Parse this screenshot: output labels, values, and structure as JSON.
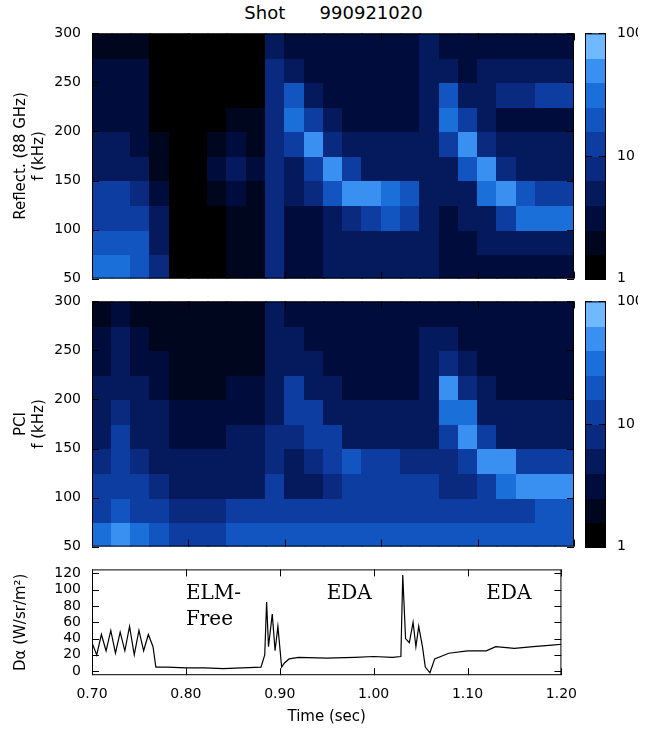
{
  "chart_data": [
    {
      "type": "heatmap",
      "title": "Shot      990921020",
      "y_label": [
        "Reflect. (88 GHz)",
        "f (kHz)"
      ],
      "xlim": [
        0.7,
        1.2
      ],
      "xticks": [
        0.7,
        0.8,
        0.9,
        1.0,
        1.1,
        1.2
      ],
      "ylim": [
        50,
        300
      ],
      "yticks": [
        50,
        100,
        150,
        200,
        250,
        300
      ],
      "tick_labels": "y",
      "x_edges": [
        0.7,
        0.72,
        0.74,
        0.76,
        0.78,
        0.8,
        0.82,
        0.84,
        0.86,
        0.88,
        0.9,
        0.92,
        0.94,
        0.96,
        0.98,
        1.0,
        1.02,
        1.04,
        1.06,
        1.08,
        1.1,
        1.12,
        1.14,
        1.16,
        1.18,
        1.2
      ],
      "y_edges": [
        50,
        75,
        100,
        125,
        150,
        175,
        200,
        225,
        250,
        275,
        300
      ],
      "z": [
        [
          30,
          30,
          25,
          8,
          1,
          1,
          1,
          2,
          2,
          8,
          3,
          3,
          4,
          4,
          4,
          4,
          4,
          6,
          3,
          3,
          3,
          3,
          3,
          3,
          3
        ],
        [
          25,
          25,
          20,
          6,
          1,
          1,
          1,
          2,
          2,
          8,
          3,
          3,
          4,
          4,
          5,
          5,
          5,
          6,
          3,
          3,
          4,
          4,
          4,
          4,
          4
        ],
        [
          15,
          15,
          12,
          4,
          1,
          1,
          1,
          2,
          2,
          8,
          3,
          3,
          5,
          8,
          15,
          20,
          10,
          6,
          3,
          4,
          6,
          12,
          30,
          30,
          30
        ],
        [
          10,
          10,
          8,
          3,
          1,
          1,
          2,
          3,
          2,
          8,
          4,
          8,
          25,
          50,
          40,
          30,
          25,
          6,
          4,
          6,
          30,
          50,
          20,
          15,
          15
        ],
        [
          6,
          6,
          5,
          2,
          1,
          1,
          3,
          5,
          3,
          8,
          5,
          15,
          40,
          10,
          6,
          5,
          5,
          6,
          5,
          20,
          40,
          8,
          5,
          5,
          5
        ],
        [
          4,
          4,
          3,
          2,
          1,
          1,
          2,
          3,
          2,
          8,
          10,
          40,
          8,
          4,
          4,
          4,
          4,
          6,
          10,
          40,
          8,
          4,
          4,
          4,
          4
        ],
        [
          3,
          3,
          3,
          1,
          1,
          1,
          1,
          2,
          2,
          8,
          30,
          10,
          4,
          3,
          3,
          3,
          3,
          6,
          30,
          10,
          4,
          3,
          3,
          3,
          3
        ],
        [
          3,
          3,
          3,
          1,
          1,
          1,
          1,
          1,
          1,
          8,
          20,
          5,
          3,
          3,
          3,
          3,
          3,
          6,
          25,
          5,
          6,
          8,
          8,
          10,
          10
        ],
        [
          3,
          3,
          3,
          1,
          1,
          1,
          1,
          1,
          1,
          8,
          6,
          3,
          3,
          3,
          3,
          3,
          3,
          6,
          5,
          3,
          4,
          6,
          6,
          6,
          6
        ],
        [
          2,
          2,
          2,
          1,
          1,
          1,
          1,
          1,
          1,
          6,
          3,
          3,
          3,
          3,
          3,
          3,
          3,
          5,
          3,
          3,
          3,
          3,
          3,
          3,
          3
        ]
      ],
      "colorbar_lim": [
        1,
        100
      ],
      "colorbar_ticks": [
        1,
        10,
        100
      ],
      "colorbar_log": true
    },
    {
      "type": "heatmap",
      "y_label": [
        "PCI",
        "f (kHz)"
      ],
      "xlim": [
        0.7,
        1.2
      ],
      "xticks": [
        0.7,
        0.8,
        0.9,
        1.0,
        1.1,
        1.2
      ],
      "ylim": [
        50,
        300
      ],
      "yticks": [
        50,
        100,
        150,
        200,
        250,
        300
      ],
      "tick_labels": "y",
      "x_edges": [
        0.7,
        0.72,
        0.74,
        0.76,
        0.78,
        0.8,
        0.82,
        0.84,
        0.86,
        0.88,
        0.9,
        0.92,
        0.94,
        0.96,
        0.98,
        1.0,
        1.02,
        1.04,
        1.06,
        1.08,
        1.1,
        1.12,
        1.14,
        1.16,
        1.18,
        1.2
      ],
      "y_edges": [
        50,
        75,
        100,
        125,
        150,
        175,
        200,
        225,
        250,
        275,
        300
      ],
      "z": [
        [
          30,
          40,
          30,
          25,
          15,
          15,
          15,
          20,
          20,
          25,
          20,
          20,
          20,
          20,
          20,
          20,
          20,
          25,
          20,
          20,
          20,
          20,
          20,
          20,
          20
        ],
        [
          15,
          20,
          15,
          12,
          8,
          8,
          8,
          10,
          10,
          15,
          10,
          10,
          10,
          10,
          10,
          10,
          10,
          15,
          10,
          10,
          10,
          12,
          15,
          20,
          20
        ],
        [
          10,
          15,
          10,
          8,
          5,
          5,
          5,
          6,
          6,
          10,
          6,
          6,
          8,
          10,
          15,
          15,
          12,
          10,
          8,
          8,
          12,
          30,
          50,
          40,
          40
        ],
        [
          8,
          12,
          8,
          6,
          4,
          4,
          4,
          5,
          5,
          8,
          6,
          8,
          15,
          20,
          12,
          10,
          8,
          8,
          8,
          15,
          50,
          40,
          15,
          15,
          15
        ],
        [
          6,
          10,
          6,
          5,
          3,
          3,
          3,
          4,
          4,
          8,
          8,
          15,
          15,
          6,
          5,
          5,
          5,
          6,
          15,
          50,
          15,
          6,
          6,
          6,
          6
        ],
        [
          5,
          8,
          5,
          4,
          3,
          3,
          3,
          3,
          3,
          6,
          12,
          15,
          6,
          4,
          4,
          4,
          4,
          6,
          30,
          30,
          6,
          4,
          4,
          4,
          4
        ],
        [
          4,
          6,
          4,
          3,
          2,
          2,
          2,
          3,
          3,
          6,
          15,
          6,
          4,
          3,
          3,
          3,
          3,
          6,
          40,
          8,
          4,
          3,
          3,
          3,
          3
        ],
        [
          3,
          5,
          3,
          3,
          2,
          2,
          2,
          2,
          2,
          5,
          6,
          4,
          3,
          3,
          3,
          3,
          3,
          5,
          8,
          4,
          3,
          3,
          3,
          3,
          3
        ],
        [
          3,
          4,
          3,
          2,
          2,
          2,
          2,
          2,
          2,
          5,
          4,
          3,
          3,
          3,
          3,
          3,
          3,
          4,
          4,
          3,
          3,
          3,
          3,
          3,
          3
        ],
        [
          2,
          3,
          2,
          2,
          2,
          2,
          2,
          2,
          2,
          4,
          3,
          3,
          3,
          3,
          3,
          3,
          3,
          3,
          3,
          3,
          3,
          3,
          3,
          3,
          3
        ]
      ],
      "colorbar_lim": [
        1,
        100
      ],
      "colorbar_ticks": [
        1,
        10,
        100
      ],
      "colorbar_log": true
    },
    {
      "type": "line",
      "x_label": "Time (sec)",
      "y_label": "Dα (W/sr/m²)",
      "color": "#000000",
      "xlim": [
        0.7,
        1.2
      ],
      "xticks": [
        {
          "value": 0.7,
          "label": "0.70"
        },
        {
          "value": 0.8,
          "label": "0.80"
        },
        {
          "value": 0.9,
          "label": "0.90"
        },
        {
          "value": 1.0,
          "label": "1.00"
        },
        {
          "value": 1.1,
          "label": "1.10"
        },
        {
          "value": 1.2,
          "label": "1.20"
        }
      ],
      "ylim": [
        -5,
        125
      ],
      "yticks": [
        0,
        20,
        40,
        60,
        80,
        100,
        120
      ],
      "x": [
        0.7,
        0.705,
        0.71,
        0.715,
        0.72,
        0.725,
        0.73,
        0.735,
        0.74,
        0.745,
        0.75,
        0.755,
        0.76,
        0.765,
        0.768,
        0.78,
        0.8,
        0.82,
        0.84,
        0.86,
        0.88,
        0.884,
        0.886,
        0.888,
        0.892,
        0.895,
        0.898,
        0.902,
        0.905,
        0.91,
        0.92,
        0.95,
        0.98,
        1.0,
        1.02,
        1.029,
        1.031,
        1.034,
        1.038,
        1.042,
        1.045,
        1.048,
        1.052,
        1.055,
        1.06,
        1.065,
        1.08,
        1.1,
        1.12,
        1.13,
        1.15,
        1.17,
        1.19,
        1.2
      ],
      "values": [
        35,
        20,
        45,
        25,
        50,
        22,
        48,
        25,
        55,
        20,
        50,
        25,
        45,
        30,
        5,
        5,
        4,
        4,
        3,
        4,
        5,
        20,
        85,
        30,
        70,
        25,
        55,
        5,
        10,
        15,
        17,
        16,
        17,
        18,
        17,
        18,
        118,
        40,
        35,
        60,
        30,
        55,
        30,
        5,
        -2,
        15,
        22,
        25,
        25,
        30,
        28,
        30,
        32,
        33
      ],
      "annotations": [
        {
          "text": [
            "ELM-",
            "Free"
          ],
          "x": 0.8,
          "y": 95
        },
        {
          "text": [
            "EDA"
          ],
          "x": 0.95,
          "y": 95
        },
        {
          "text": [
            "EDA"
          ],
          "x": 1.12,
          "y": 95
        }
      ]
    }
  ]
}
